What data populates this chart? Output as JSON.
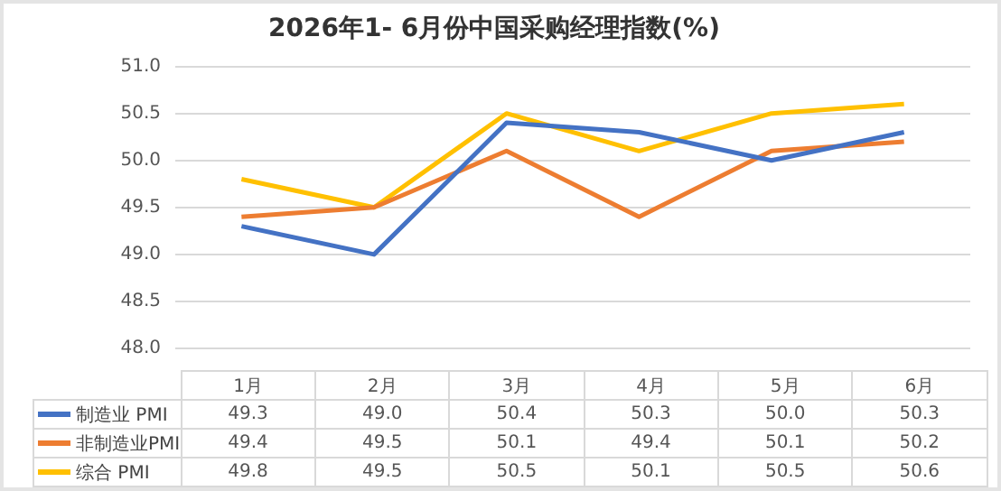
{
  "chart_data": {
    "type": "line",
    "title": "2026年1- 6月份中国采购经理指数(%)",
    "categories": [
      "1月",
      "2月",
      "3月",
      "4月",
      "5月",
      "6月"
    ],
    "series": [
      {
        "name": "制造业 PMI",
        "color": "#4472c4",
        "values": [
          49.3,
          49.0,
          50.4,
          50.3,
          50.0,
          50.3
        ],
        "value_labels": [
          "49.3",
          "49.0",
          "50.4",
          "50.3",
          "50.0",
          "50.3"
        ]
      },
      {
        "name": "非制造业PMI",
        "color": "#ed7d31",
        "values": [
          49.4,
          49.5,
          50.1,
          49.4,
          50.1,
          50.2
        ],
        "value_labels": [
          "49.4",
          "49.5",
          "50.1",
          "49.4",
          "50.1",
          "50.2"
        ]
      },
      {
        "name": "综合 PMI",
        "color": "#ffc000",
        "values": [
          49.8,
          49.5,
          50.5,
          50.1,
          50.5,
          50.6
        ],
        "value_labels": [
          "49.8",
          "49.5",
          "50.5",
          "50.1",
          "50.5",
          "50.6"
        ]
      }
    ],
    "ylim": [
      48,
      51
    ],
    "yticks": [
      {
        "value": 48,
        "label": "48.0"
      },
      {
        "value": 48.5,
        "label": "48.5"
      },
      {
        "value": 49,
        "label": "49.0"
      },
      {
        "value": 49.5,
        "label": "49.5"
      },
      {
        "value": 50,
        "label": "50.0"
      },
      {
        "value": 50.5,
        "label": "50.5"
      },
      {
        "value": 51,
        "label": "51.0"
      }
    ],
    "grid": "y",
    "legend": "bottom",
    "marker": "none"
  }
}
